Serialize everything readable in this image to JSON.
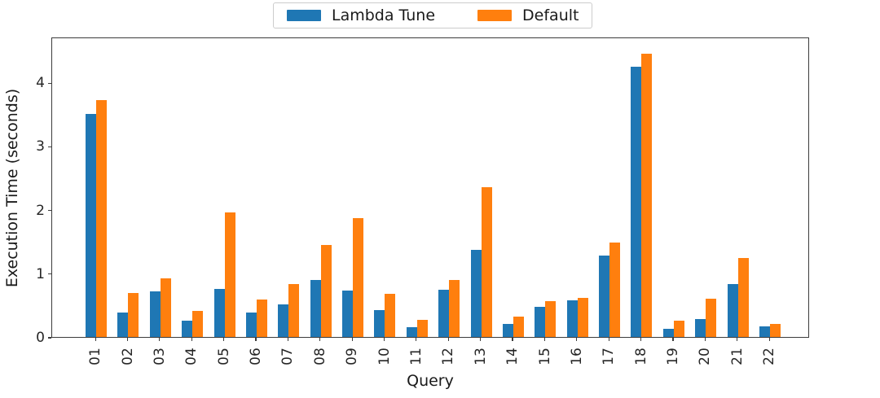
{
  "legend": {
    "items": [
      {
        "label": "Lambda Tune",
        "color": "#1f77b4"
      },
      {
        "label": "Default",
        "color": "#ff7f0e"
      }
    ]
  },
  "chart_data": {
    "type": "bar",
    "title": "",
    "xlabel": "Query",
    "ylabel": "Execution Time (seconds)",
    "categories": [
      "01",
      "02",
      "03",
      "04",
      "05",
      "06",
      "07",
      "08",
      "09",
      "10",
      "11",
      "12",
      "13",
      "14",
      "15",
      "16",
      "17",
      "18",
      "19",
      "20",
      "21",
      "22"
    ],
    "series": [
      {
        "name": "Lambda Tune",
        "color": "#1f77b4",
        "values": [
          3.5,
          0.38,
          0.72,
          0.26,
          0.76,
          0.38,
          0.51,
          0.9,
          0.73,
          0.42,
          0.16,
          0.74,
          1.37,
          0.21,
          0.47,
          0.57,
          1.28,
          4.25,
          0.13,
          0.28,
          0.83,
          0.17
        ]
      },
      {
        "name": "Default",
        "color": "#ff7f0e",
        "values": [
          3.72,
          0.69,
          0.92,
          0.41,
          1.96,
          0.59,
          0.83,
          1.45,
          1.87,
          0.68,
          0.27,
          0.9,
          2.36,
          0.32,
          0.56,
          0.62,
          1.48,
          4.45,
          0.26,
          0.6,
          1.24,
          0.2
        ]
      }
    ],
    "ylim": [
      0,
      4.72
    ],
    "yticks": [
      0,
      1,
      2,
      3,
      4
    ],
    "grid": false,
    "legend_position": "top-center",
    "x_tick_rotation": 90,
    "axis_color": "#3c3c3c",
    "text_color": "#262626"
  }
}
